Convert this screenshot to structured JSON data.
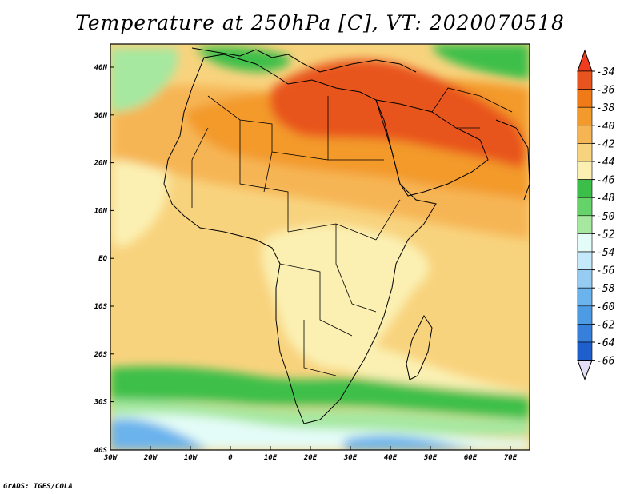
{
  "title": "Temperature at 250hPa [C], VT: 2020070518",
  "footer": "GrADS: IGES/COLA",
  "axes": {
    "x_ticks": [
      "30W",
      "20W",
      "10W",
      "0",
      "10E",
      "20E",
      "30E",
      "40E",
      "50E",
      "60E",
      "70E"
    ],
    "y_ticks": [
      "40N",
      "30N",
      "20N",
      "10N",
      "EQ",
      "10S",
      "20S",
      "30S",
      "40S"
    ]
  },
  "colorbar": {
    "levels": [
      "-34",
      "-36",
      "-38",
      "-40",
      "-42",
      "-44",
      "-46",
      "-48",
      "-50",
      "-52",
      "-54",
      "-56",
      "-58",
      "-60",
      "-62",
      "-64",
      "-66"
    ],
    "colors": [
      "#e8541f",
      "#f07a18",
      "#f39a2c",
      "#f6b554",
      "#f8d37e",
      "#fbf0b2",
      "#3cbf48",
      "#66d36a",
      "#a6e8a0",
      "#e4fcf7",
      "#c4e9fb",
      "#96ccf2",
      "#6bb3ec",
      "#4d9be4",
      "#3680dc",
      "#1f5fcc",
      "#0c2c94"
    ],
    "top_color": "#f03c1e",
    "bottom_color": "#e3ddf7"
  },
  "colors": {
    "background": "#f8d37e",
    "pale": "#fbf0b2",
    "warm": "#f6b554",
    "orange": "#f39a2c",
    "hot": "#e8541f",
    "green": "#3cbf48",
    "light_green": "#a6e8a0",
    "cyan": "#e4fcf7",
    "blue": "#6bb3ec",
    "coast": "#000000"
  }
}
